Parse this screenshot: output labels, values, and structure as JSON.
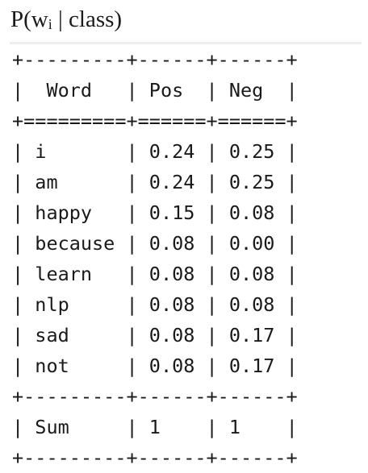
{
  "title": {
    "prefix": "P(w",
    "subscript": "i",
    "suffix": " | class)"
  },
  "table": {
    "columns": [
      "Word",
      "Pos",
      "Neg"
    ],
    "rows": [
      {
        "word": "i",
        "pos": "0.24",
        "neg": "0.25"
      },
      {
        "word": "am",
        "pos": "0.24",
        "neg": "0.25"
      },
      {
        "word": "happy",
        "pos": "0.15",
        "neg": "0.08"
      },
      {
        "word": "because",
        "pos": "0.08",
        "neg": "0.00"
      },
      {
        "word": "learn",
        "pos": "0.08",
        "neg": "0.08"
      },
      {
        "word": "nlp",
        "pos": "0.08",
        "neg": "0.08"
      },
      {
        "word": "sad",
        "pos": "0.08",
        "neg": "0.17"
      },
      {
        "word": "not",
        "pos": "0.08",
        "neg": "0.17"
      }
    ],
    "total": {
      "word": "Sum",
      "pos": "1",
      "neg": "1"
    }
  }
}
